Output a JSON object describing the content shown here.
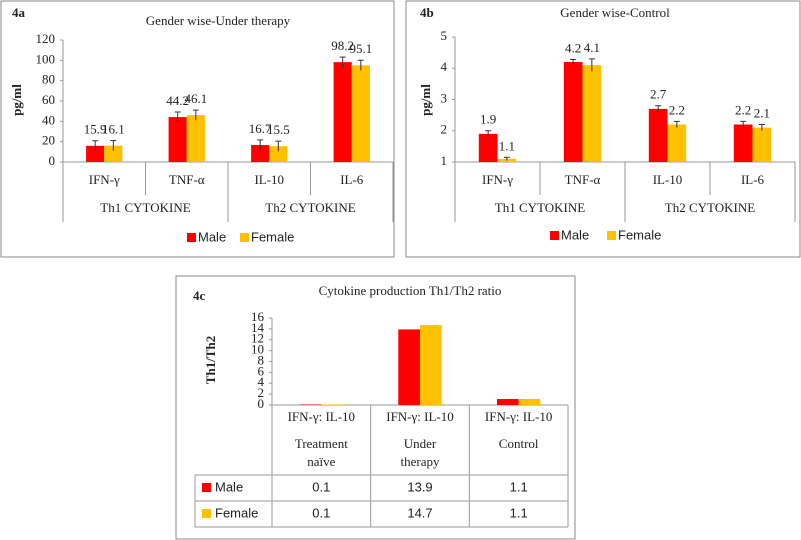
{
  "chart_data": [
    {
      "type": "bar",
      "panel_label": "4a",
      "title": "Gender wise-Under therapy",
      "y_label": "pg/ml",
      "categories": [
        "IFN-γ",
        "TNF-α",
        "IL-10",
        "IL-6"
      ],
      "groups": [
        "Th1 CYTOKINE",
        "Th2 CYTOKINE"
      ],
      "series": [
        {
          "name": "Male",
          "color": "#ff0000",
          "values": [
            15.9,
            44.2,
            16.7,
            98.2
          ],
          "errors": [
            5,
            5,
            5,
            5
          ]
        },
        {
          "name": "Female",
          "color": "#ffc000",
          "values": [
            16.1,
            46.1,
            15.5,
            95.1
          ],
          "errors": [
            5,
            5,
            5,
            5
          ]
        }
      ],
      "ylim": [
        0,
        120
      ],
      "yticks": [
        0,
        20,
        40,
        60,
        80,
        100,
        120
      ]
    },
    {
      "type": "bar",
      "panel_label": "4b",
      "title": "Gender wise-Control",
      "y_label": "pg/ml",
      "categories": [
        "IFN-γ",
        "TNF-α",
        "IL-10",
        "IL-6"
      ],
      "groups": [
        "Th1 CYTOKINE",
        "Th2 CYTOKINE"
      ],
      "series": [
        {
          "name": "Male",
          "color": "#ff0000",
          "values": [
            1.9,
            4.2,
            2.7,
            2.2
          ],
          "errors": [
            0.1,
            0.08,
            0.1,
            0.1
          ]
        },
        {
          "name": "Female",
          "color": "#ffc000",
          "values": [
            1.1,
            4.1,
            2.2,
            2.1
          ],
          "errors": [
            0.05,
            0.2,
            0.1,
            0.1
          ]
        }
      ],
      "ylim": [
        1,
        5
      ],
      "yticks": [
        1,
        2,
        3,
        4,
        5
      ]
    },
    {
      "type": "bar_table",
      "panel_label": "4c",
      "title": "Cytokine production Th1/Th2 ratio",
      "y_label": "Th1/Th2",
      "categories": [
        "IFN-γ: IL-10",
        "IFN-γ: IL-10",
        "IFN-γ: IL-10"
      ],
      "subcategories": [
        "Treatment naïve",
        "Under therapy",
        "Control"
      ],
      "series": [
        {
          "name": "Male",
          "color": "#ff0000",
          "values": [
            0.1,
            13.9,
            1.1
          ]
        },
        {
          "name": "Female",
          "color": "#ffc000",
          "values": [
            0.1,
            14.7,
            1.1
          ]
        }
      ],
      "ylim": [
        0,
        16
      ],
      "yticks": [
        0,
        2,
        4,
        6,
        8,
        10,
        12,
        14,
        16
      ]
    }
  ]
}
